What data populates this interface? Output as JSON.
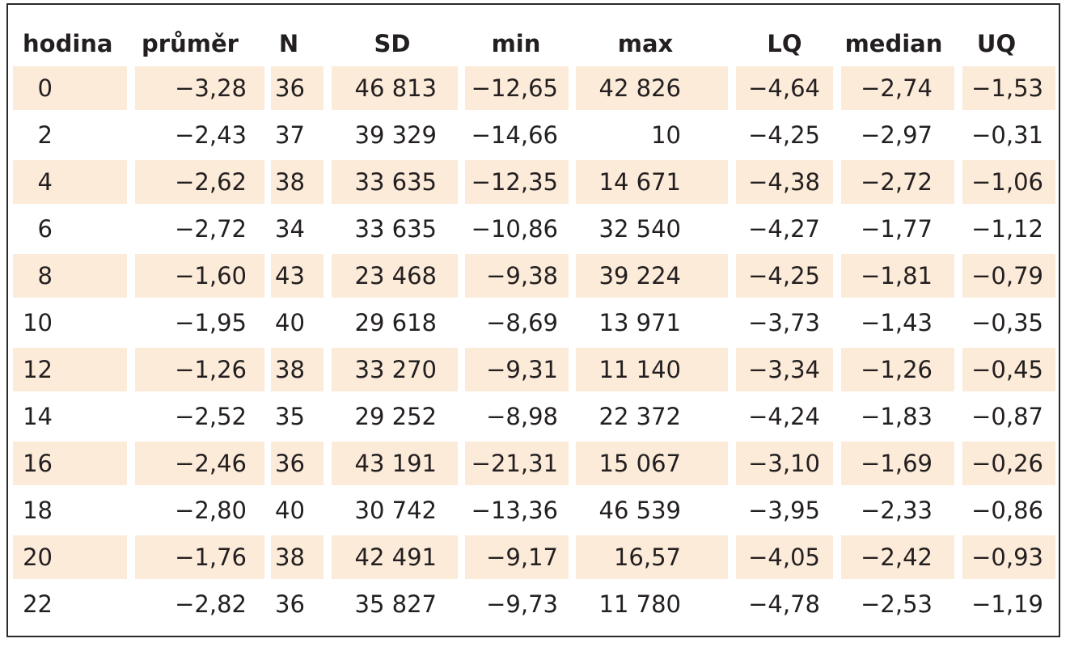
{
  "table": {
    "header": [
      "hodina",
      "průměr",
      "N",
      "SD",
      "min",
      "max",
      "LQ",
      "median",
      "UQ"
    ],
    "rows": [
      [
        "0",
        "−3,28",
        "36",
        "46 813",
        "−12,65",
        "42 826",
        "−4,64",
        "−2,74",
        "−1,53"
      ],
      [
        "2",
        "−2,43",
        "37",
        "39 329",
        "−14,66",
        "10",
        "−4,25",
        "−2,97",
        "−0,31"
      ],
      [
        "4",
        "−2,62",
        "38",
        "33 635",
        "−12,35",
        "14 671",
        "−4,38",
        "−2,72",
        "−1,06"
      ],
      [
        "6",
        "−2,72",
        "34",
        "33 635",
        "−10,86",
        "32 540",
        "−4,27",
        "−1,77",
        "−1,12"
      ],
      [
        "8",
        "−1,60",
        "43",
        "23 468",
        "−9,38",
        "39 224",
        "−4,25",
        "−1,81",
        "−0,79"
      ],
      [
        "10",
        "−1,95",
        "40",
        "29 618",
        "−8,69",
        "13 971",
        "−3,73",
        "−1,43",
        "−0,35"
      ],
      [
        "12",
        "−1,26",
        "38",
        "33 270",
        "−9,31",
        "11 140",
        "−3,34",
        "−1,26",
        "−0,45"
      ],
      [
        "14",
        "−2,52",
        "35",
        "29 252",
        "−8,98",
        "22 372",
        "−4,24",
        "−1,83",
        "−0,87"
      ],
      [
        "16",
        "−2,46",
        "36",
        "43 191",
        "−21,31",
        "15 067",
        "−3,10",
        "−1,69",
        "−0,26"
      ],
      [
        "18",
        "−2,80",
        "40",
        "30 742",
        "−13,36",
        "46 539",
        "−3,95",
        "−2,33",
        "−0,86"
      ],
      [
        "20",
        "−1,76",
        "38",
        "42 491",
        "−9,17",
        "16,57",
        "−4,05",
        "−2,42",
        "−0,93"
      ],
      [
        "22",
        "−2,82",
        "36",
        "35 827",
        "−9,73",
        "11 780",
        "−4,78",
        "−2,53",
        "−1,19"
      ]
    ]
  }
}
